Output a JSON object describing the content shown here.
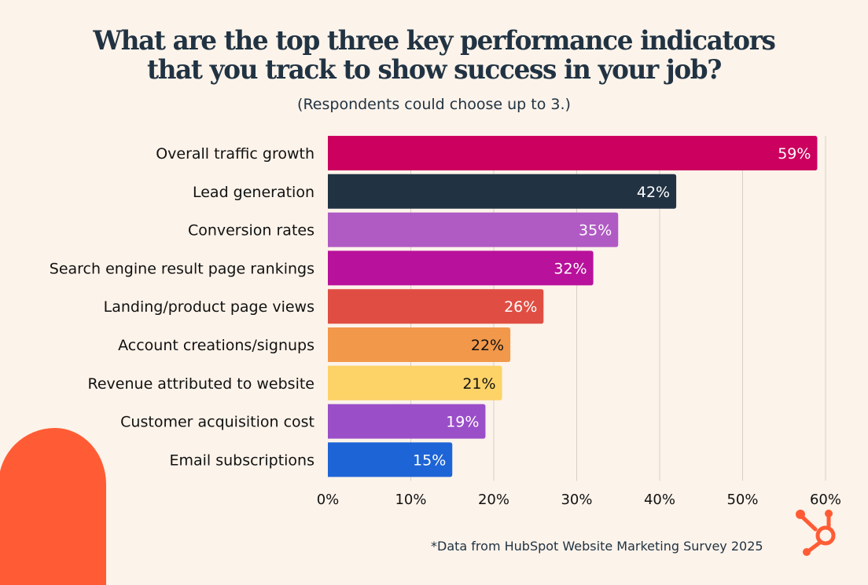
{
  "header": {
    "title_line1": "What are the top three key performance indicators",
    "title_line2": "that you track to show success in your job?",
    "subtitle": "(Respondents could choose up to 3.)"
  },
  "footnote": "*Data from HubSpot Website Marketing Survey 2025",
  "logo": {
    "icon": "hubspot-sprocket-icon",
    "color": "#ff5c35"
  },
  "chart_data": {
    "type": "bar",
    "orientation": "horizontal",
    "title": "What are the top three key performance indicators that you track to show success in your job?",
    "subtitle": "(Respondents could choose up to 3.)",
    "xlabel": "",
    "ylabel": "",
    "xlim": [
      0,
      60
    ],
    "x_ticks": [
      0,
      10,
      20,
      30,
      40,
      50,
      60
    ],
    "x_tick_labels": [
      "0%",
      "10%",
      "20%",
      "30%",
      "40%",
      "50%",
      "60%"
    ],
    "grid": "vertical",
    "legend": "none",
    "categories": [
      "Overall traffic growth",
      "Lead generation",
      "Conversion rates",
      "Search engine result page rankings",
      "Landing/product page views",
      "Account creations/signups",
      "Revenue attributed to website",
      "Customer acquisition cost",
      "Email subscriptions"
    ],
    "values": [
      59,
      42,
      35,
      32,
      26,
      22,
      21,
      19,
      15
    ],
    "value_labels": [
      "59%",
      "42%",
      "35%",
      "32%",
      "26%",
      "22%",
      "21%",
      "19%",
      "15%"
    ],
    "colors": [
      "#cc005e",
      "#213343",
      "#b05ac4",
      "#b8119b",
      "#e04e43",
      "#f2984a",
      "#fdd368",
      "#9a4fc8",
      "#1d64d6"
    ],
    "label_colors": [
      "#ffffff",
      "#ffffff",
      "#ffffff",
      "#ffffff",
      "#ffffff",
      "#111111",
      "#111111",
      "#ffffff",
      "#ffffff"
    ]
  }
}
